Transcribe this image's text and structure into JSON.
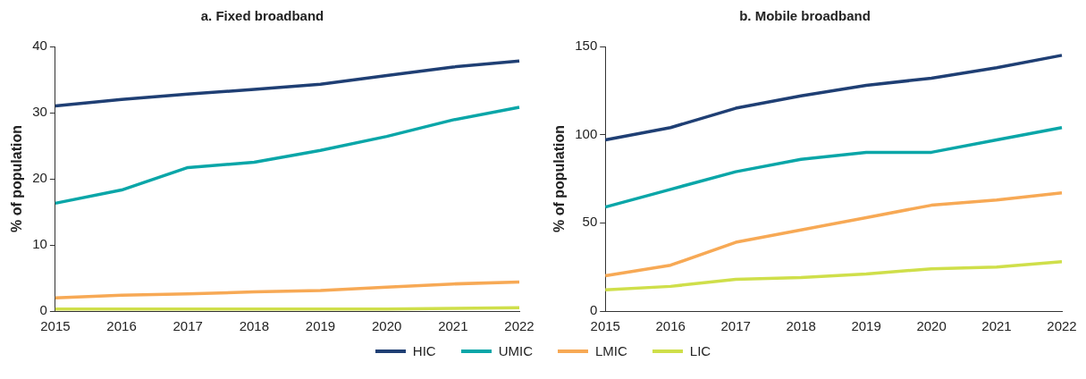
{
  "chart_data": [
    {
      "type": "line",
      "title": "a. Fixed broadband",
      "ylabel": "% of population",
      "categories": [
        "2015",
        "2016",
        "2017",
        "2018",
        "2019",
        "2020",
        "2021",
        "2022"
      ],
      "ylim": [
        0,
        40
      ],
      "yticks": [
        0,
        10,
        20,
        30,
        40
      ],
      "grid": false,
      "legend": "bottom",
      "marker": "none",
      "series": [
        {
          "name": "HIC",
          "color": "#1f3f74",
          "values": [
            31,
            32,
            32.8,
            33.5,
            34.3,
            35.6,
            36.9,
            37.8
          ]
        },
        {
          "name": "UMIC",
          "color": "#0aa6a8",
          "values": [
            16.3,
            18.3,
            21.7,
            22.5,
            24.3,
            26.4,
            28.9,
            30.8
          ]
        },
        {
          "name": "LMIC",
          "color": "#f7a955",
          "values": [
            2,
            2.4,
            2.6,
            2.9,
            3.1,
            3.6,
            4.1,
            4.4
          ]
        },
        {
          "name": "LIC",
          "color": "#cfdf4a",
          "values": [
            0.3,
            0.3,
            0.3,
            0.3,
            0.3,
            0.3,
            0.4,
            0.5
          ]
        }
      ]
    },
    {
      "type": "line",
      "title": "b. Mobile broadband",
      "ylabel": "% of population",
      "categories": [
        "2015",
        "2016",
        "2017",
        "2018",
        "2019",
        "2020",
        "2021",
        "2022"
      ],
      "ylim": [
        0,
        150
      ],
      "yticks": [
        0,
        50,
        100,
        150
      ],
      "grid": false,
      "legend": "bottom",
      "marker": "none",
      "series": [
        {
          "name": "HIC",
          "color": "#1f3f74",
          "values": [
            97,
            104,
            115,
            122,
            128,
            132,
            138,
            145
          ]
        },
        {
          "name": "UMIC",
          "color": "#0aa6a8",
          "values": [
            59,
            69,
            79,
            86,
            90,
            90,
            97,
            104
          ]
        },
        {
          "name": "LMIC",
          "color": "#f7a955",
          "values": [
            20,
            26,
            39,
            46,
            53,
            60,
            63,
            67
          ]
        },
        {
          "name": "LIC",
          "color": "#cfdf4a",
          "values": [
            12,
            14,
            18,
            19,
            21,
            24,
            25,
            28
          ]
        }
      ]
    }
  ]
}
